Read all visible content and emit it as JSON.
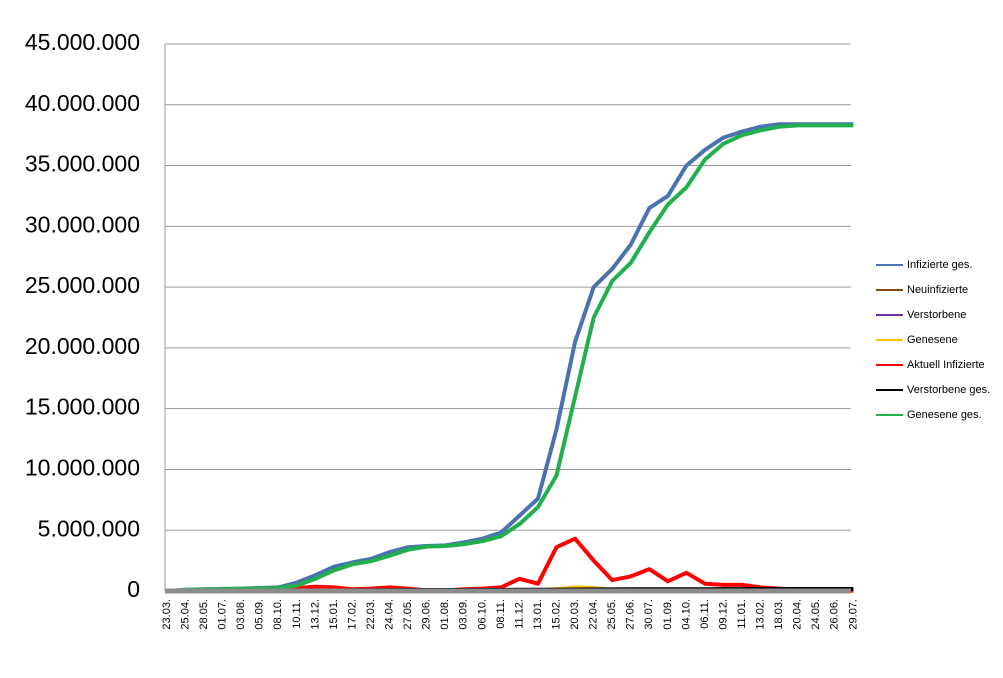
{
  "chart_data": {
    "type": "line",
    "categories": [
      "23.03.",
      "25.04.",
      "28.05.",
      "01.07.",
      "03.08.",
      "05.09.",
      "08.10.",
      "10.11.",
      "13.12.",
      "15.01.",
      "17.02.",
      "22.03.",
      "24.04.",
      "27.05.",
      "29.06.",
      "01.08.",
      "03.09.",
      "06.10.",
      "08.11.",
      "11.12.",
      "13.01.",
      "15.02.",
      "20.03.",
      "22.04.",
      "25.05.",
      "27.06.",
      "30.07.",
      "01.09.",
      "04.10.",
      "06.11.",
      "09.12.",
      "11.01.",
      "13.02.",
      "18.03.",
      "20.04.",
      "24.05.",
      "26.06.",
      "29.07."
    ],
    "ylim": [
      0,
      45000000
    ],
    "yticks": [
      0,
      {
        "value": 5000000,
        "label": "5.000.000"
      },
      {
        "value": 10000000,
        "label": "10.000.000"
      },
      {
        "value": 15000000,
        "label": "15.000.000"
      },
      {
        "value": 20000000,
        "label": "20.000.000"
      },
      {
        "value": 25000000,
        "label": "25.000.000"
      },
      {
        "value": 30000000,
        "label": "30.000.000"
      },
      {
        "value": 35000000,
        "label": "35.000.000"
      },
      {
        "value": 40000000,
        "label": "40.000.000"
      },
      {
        "value": 45000000,
        "label": "45.000.000"
      }
    ],
    "grid": true,
    "legend": "right",
    "series": [
      {
        "name": "Infizierte ges.",
        "color": "#4a72b0",
        "values": [
          0,
          100000,
          150000,
          170000,
          200000,
          250000,
          300000,
          700000,
          1300000,
          2000000,
          2350000,
          2650000,
          3200000,
          3600000,
          3700000,
          3750000,
          4000000,
          4300000,
          4800000,
          6200000,
          7600000,
          13300000,
          20500000,
          25000000,
          26500000,
          28500000,
          31500000,
          32500000,
          35000000,
          36300000,
          37300000,
          37800000,
          38200000,
          38400000,
          38400000,
          38400000,
          38400000,
          38400000
        ]
      },
      {
        "name": "Neuinfizierte",
        "color": "#8b4513",
        "values": [
          0,
          0,
          0,
          0,
          0,
          0,
          10000,
          30000,
          30000,
          20000,
          10000,
          20000,
          30000,
          10000,
          0,
          0,
          10000,
          20000,
          30000,
          50000,
          40000,
          150000,
          200000,
          120000,
          40000,
          60000,
          80000,
          40000,
          60000,
          30000,
          30000,
          30000,
          20000,
          10000,
          0,
          0,
          0,
          0
        ]
      },
      {
        "name": "Verstorbene",
        "color": "#7030a0",
        "values": [
          0,
          0,
          0,
          0,
          0,
          0,
          0,
          0,
          0,
          0,
          0,
          0,
          0,
          0,
          0,
          0,
          0,
          0,
          0,
          0,
          0,
          0,
          0,
          0,
          0,
          0,
          0,
          0,
          0,
          0,
          0,
          0,
          0,
          0,
          0,
          0,
          0,
          0
        ]
      },
      {
        "name": "Genesene",
        "color": "#ffc000",
        "values": [
          0,
          0,
          0,
          0,
          0,
          0,
          10000,
          20000,
          30000,
          30000,
          20000,
          20000,
          30000,
          20000,
          0,
          0,
          10000,
          20000,
          30000,
          50000,
          50000,
          150000,
          300000,
          250000,
          80000,
          60000,
          100000,
          60000,
          60000,
          40000,
          30000,
          30000,
          20000,
          10000,
          0,
          0,
          0,
          0
        ]
      },
      {
        "name": "Aktuell Infizierte",
        "color": "#ff0000",
        "values": [
          20000,
          20000,
          20000,
          20000,
          50000,
          50000,
          50000,
          250000,
          350000,
          300000,
          150000,
          200000,
          300000,
          200000,
          50000,
          50000,
          150000,
          200000,
          300000,
          1000000,
          600000,
          3600000,
          4300000,
          2500000,
          900000,
          1200000,
          1800000,
          800000,
          1500000,
          600000,
          500000,
          500000,
          300000,
          200000,
          100000,
          50000,
          50000,
          50000
        ]
      },
      {
        "name": "Verstorbene ges.",
        "color": "#000000",
        "values": [
          0,
          5000,
          8000,
          9000,
          9500,
          9600,
          10000,
          15000,
          30000,
          45000,
          55000,
          65000,
          75000,
          80000,
          82000,
          83000,
          84000,
          86000,
          90000,
          95000,
          100000,
          110000,
          120000,
          130000,
          135000,
          138000,
          140000,
          143000,
          145000,
          150000,
          155000,
          158000,
          160000,
          161000,
          162000,
          162000,
          162000,
          162000
        ]
      },
      {
        "name": "Genesene ges.",
        "color": "#22b04c",
        "values": [
          0,
          80000,
          130000,
          160000,
          180000,
          200000,
          250000,
          450000,
          1000000,
          1700000,
          2200000,
          2450000,
          2900000,
          3400000,
          3650000,
          3700000,
          3850000,
          4100000,
          4500000,
          5500000,
          6900000,
          9500000,
          16000000,
          22500000,
          25500000,
          27000000,
          29500000,
          31800000,
          33200000,
          35500000,
          36800000,
          37500000,
          37900000,
          38200000,
          38300000,
          38300000,
          38300000,
          38300000
        ]
      }
    ]
  }
}
